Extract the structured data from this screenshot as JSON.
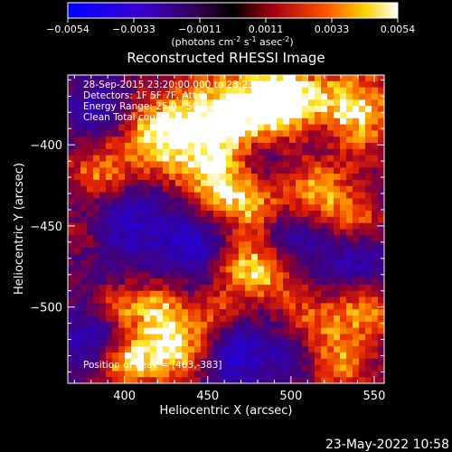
{
  "colorbar": {
    "ticks": [
      "-0.0054",
      "-0.0033",
      "-0.0011",
      "0.0011",
      "0.0033",
      "0.0054"
    ],
    "units_prefix": "(photons cm",
    "units_exp1": "-2",
    "units_mid": " s",
    "units_exp2": "-1",
    "units_mid2": " asec",
    "units_exp3": "-2",
    "units_suffix": ")"
  },
  "annotations": {
    "time_range": "28-Sep-2015 23:20:00.000 to 23:23:36.000",
    "detectors": "Detectors: 1F 5F 7F, Att 0",
    "energy": "Energy Range: 25.0 - 50.0 keV",
    "clean": "Clean    Total counts: 2.33E+03",
    "peak": "Position of Peak = [463,-383]"
  },
  "footer": {
    "date": "23-May-2022 10:58"
  },
  "chart_data": {
    "type": "heatmap",
    "title": "Reconstructed RHESSI Image",
    "xlabel": "Heliocentric X (arcsec)",
    "ylabel": "Heliocentric Y (arcsec)",
    "xlim": [
      366,
      556
    ],
    "ylim": [
      -547,
      -357
    ],
    "x_ticks": [
      400,
      450,
      500,
      550
    ],
    "y_ticks": [
      -400,
      -450,
      -500
    ],
    "color_range": [
      -0.0054,
      0.0054
    ],
    "colormap": "blue-black-red-yellow-white",
    "peak": [
      463,
      -383
    ]
  }
}
